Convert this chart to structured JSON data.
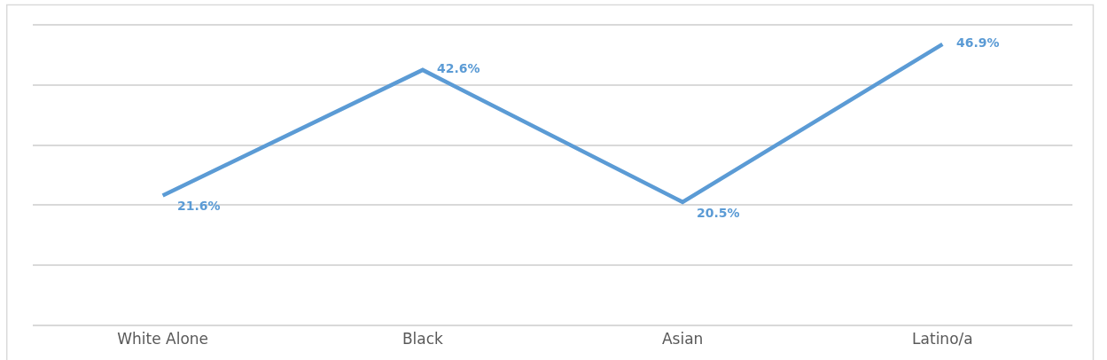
{
  "chart_data": {
    "type": "line",
    "categories": [
      "White Alone",
      "Black",
      "Asian",
      "Latino/a"
    ],
    "series": [
      {
        "color": "#5b9bd5",
        "values": [
          21.6,
          42.6,
          20.5,
          46.9
        ],
        "value_labels": [
          "21.6%",
          "42.6%",
          "20.5%",
          "46.9%"
        ]
      }
    ],
    "ylim": [
      0,
      50
    ],
    "yticks": [
      {
        "value": 0,
        "label": null
      },
      {
        "value": 10,
        "label": null
      },
      {
        "value": 20,
        "label": null
      },
      {
        "value": 30,
        "label": null
      },
      {
        "value": 40,
        "label": null
      },
      {
        "value": 50,
        "label": null
      }
    ],
    "tick_labels": "x",
    "grid": "y",
    "marker": "none",
    "line_style": "solid"
  }
}
